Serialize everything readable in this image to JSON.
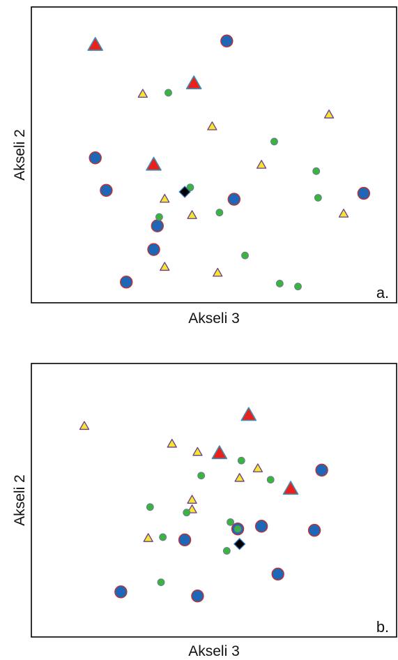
{
  "colors": {
    "blue_circle_fill": "#1f66b6",
    "blue_circle_stroke": "#c0322e",
    "red_triangle_fill": "#e8211d",
    "red_triangle_stroke": "#3f8fb5",
    "yellow_triangle_fill": "#f2e630",
    "yellow_triangle_stroke": "#6b3a8c",
    "green_dot_fill": "#3cb33e",
    "green_dot_stroke": "#6d6fa6",
    "diamond_fill": "#000000",
    "diamond_stroke": "#2e6fb5",
    "frame": "#000000"
  },
  "chart_data": [
    {
      "type": "scatter",
      "panel_label": "a.",
      "xlabel": "Akseli 3",
      "ylabel": "Akseli 2",
      "xlim": [
        0,
        100
      ],
      "ylim": [
        0,
        100
      ],
      "grid": false,
      "legend": "none",
      "series": [
        {
          "marker": "large-blue-circle",
          "points": [
            [
              53.5,
              88.5
            ],
            [
              17.5,
              49
            ],
            [
              20.5,
              38
            ],
            [
              34.5,
              26
            ],
            [
              33.5,
              18
            ],
            [
              26,
              7
            ],
            [
              55.5,
              35
            ],
            [
              91,
              37
            ]
          ]
        },
        {
          "marker": "large-red-triangle",
          "points": [
            [
              17.5,
              87
            ],
            [
              44.5,
              74
            ],
            [
              33.5,
              46.5
            ]
          ]
        },
        {
          "marker": "small-yellow-triangle",
          "points": [
            [
              30.5,
              70.5
            ],
            [
              49.5,
              59.5
            ],
            [
              63,
              46.5
            ],
            [
              81.5,
              63.5
            ],
            [
              36.5,
              35
            ],
            [
              44,
              29.5
            ],
            [
              36.5,
              12
            ],
            [
              51,
              10
            ],
            [
              85.5,
              30
            ]
          ]
        },
        {
          "marker": "small-green-dot",
          "points": [
            [
              37.5,
              71
            ],
            [
              66.5,
              54.5
            ],
            [
              78,
              44.5
            ],
            [
              43.5,
              39
            ],
            [
              35,
              29
            ],
            [
              51.5,
              30.5
            ],
            [
              58.5,
              16
            ],
            [
              68,
              6.5
            ],
            [
              73,
              5.5
            ],
            [
              78.5,
              35.5
            ]
          ]
        },
        {
          "marker": "black-diamond",
          "points": [
            [
              42,
              37.5
            ]
          ]
        }
      ]
    },
    {
      "type": "scatter",
      "panel_label": "b.",
      "xlabel": "Akseli 3",
      "ylabel": "Akseli 2",
      "xlim": [
        0,
        100
      ],
      "ylim": [
        0,
        100
      ],
      "grid": false,
      "legend": "none",
      "series": [
        {
          "marker": "large-blue-circle",
          "points": [
            [
              79.5,
              61
            ],
            [
              63,
              40.5
            ],
            [
              56.5,
              39.5
            ],
            [
              77.5,
              39
            ],
            [
              42,
              35.5
            ],
            [
              67.5,
              23
            ],
            [
              24.5,
              16.5
            ],
            [
              45.5,
              15
            ]
          ]
        },
        {
          "marker": "large-red-triangle",
          "points": [
            [
              59.5,
              81
            ],
            [
              51.5,
              67
            ],
            [
              71,
              54
            ]
          ]
        },
        {
          "marker": "small-yellow-triangle",
          "points": [
            [
              14.5,
              77
            ],
            [
              38.5,
              70.5
            ],
            [
              45.5,
              67.5
            ],
            [
              62,
              61.5
            ],
            [
              57,
              58
            ],
            [
              44,
              50
            ],
            [
              44,
              46.5
            ],
            [
              32,
              36
            ]
          ]
        },
        {
          "marker": "small-green-dot",
          "points": [
            [
              57.5,
              64.5
            ],
            [
              46.5,
              59
            ],
            [
              65.5,
              57.5
            ],
            [
              32.5,
              47.5
            ],
            [
              42.5,
              45.5
            ],
            [
              54.5,
              42
            ],
            [
              56.5,
              39.5
            ],
            [
              36,
              36.5
            ],
            [
              53.5,
              31.5
            ],
            [
              35.5,
              20
            ]
          ]
        },
        {
          "marker": "black-diamond",
          "points": [
            [
              57,
              34
            ]
          ]
        }
      ]
    }
  ]
}
